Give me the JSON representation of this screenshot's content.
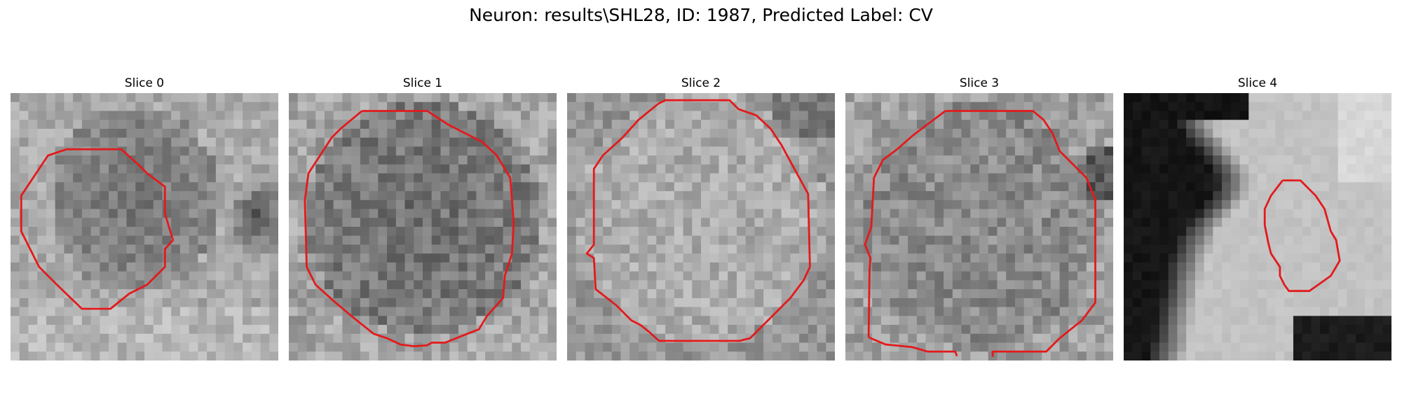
{
  "figure": {
    "title": "Neuron: results\\SHL28, ID: 1987, Predicted Label: CV",
    "contour_color": "#e31a1c"
  },
  "panels": [
    {
      "title": "Slice 0",
      "image": "grayscale-em-patch",
      "contour": "red-outline"
    },
    {
      "title": "Slice 1",
      "image": "grayscale-em-patch",
      "contour": "red-outline"
    },
    {
      "title": "Slice 2",
      "image": "grayscale-em-patch",
      "contour": "red-outline"
    },
    {
      "title": "Slice 3",
      "image": "grayscale-em-patch",
      "contour": "red-outline"
    },
    {
      "title": "Slice 4",
      "image": "grayscale-em-patch",
      "contour": "red-outline"
    }
  ]
}
